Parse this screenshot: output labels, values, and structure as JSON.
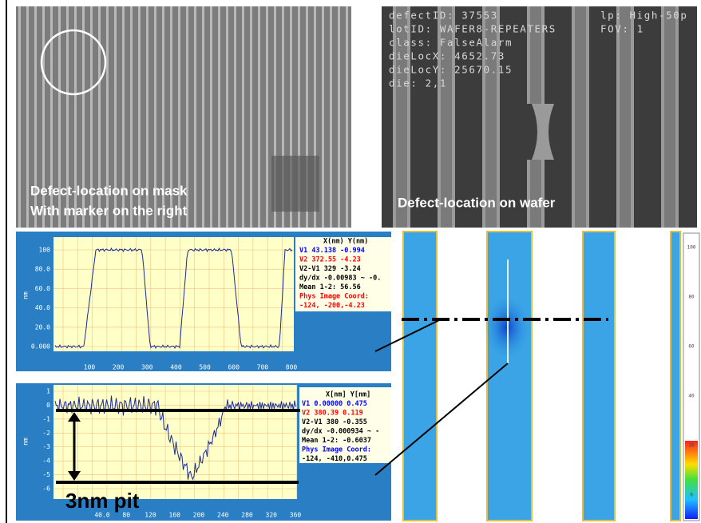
{
  "mask_image": {
    "caption": [
      "Defect-location on mask",
      "With marker on the right"
    ]
  },
  "wafer_image": {
    "info": [
      "defectID: 37553",
      "lotID: WAFER8-REPEATERS",
      "class: FalseAlarm",
      "dieLocX: 4652.73",
      "dieLocY: 25670.15",
      "die: 2,1"
    ],
    "info_right": [
      "lp: High-50p",
      "FOV: 1"
    ],
    "caption": "Defect-location on wafer"
  },
  "profile_top": {
    "y_label": "nm",
    "yticks": [
      "100",
      "80.0",
      "60.0",
      "40.0",
      "20.0",
      "0.000"
    ],
    "xticks": [
      "100",
      "200",
      "300",
      "400",
      "500",
      "600",
      "700",
      "800"
    ],
    "readout": [
      "X(nm) Y(nm)",
      "V1 43.138 -0.994",
      "V2 372.55 -4.23",
      "V2-V1 329 -3.24",
      "dy/dx -0.00983 ~ -0.",
      "Mean 1-2: 56.56",
      "Phys Image Coord:",
      "-124, -200,-4.23"
    ]
  },
  "profile_bottom": {
    "y_label": "nm",
    "yticks": [
      "1",
      "0",
      "-1",
      "-2",
      "-3",
      "-4",
      "-5",
      "-6"
    ],
    "xticks": [
      "40.0",
      "80",
      "120",
      "160",
      "200",
      "240",
      "280",
      "320",
      "360"
    ],
    "readout": [
      "X[nm] Y[nm]",
      "V1 0.00000 0.475",
      "V2 380.39 0.119",
      "V2-V1 380 -0.355",
      "dy/dx -0.000934 ~ -",
      "Mean 1-2: -0.6037",
      "Phys Image Coord:",
      "-124, -410,0.475"
    ],
    "annotation": "3nm pit"
  },
  "height_map": {
    "colorbar_ticks": [
      "100",
      "80",
      "60",
      "40",
      "20",
      "0"
    ]
  }
}
